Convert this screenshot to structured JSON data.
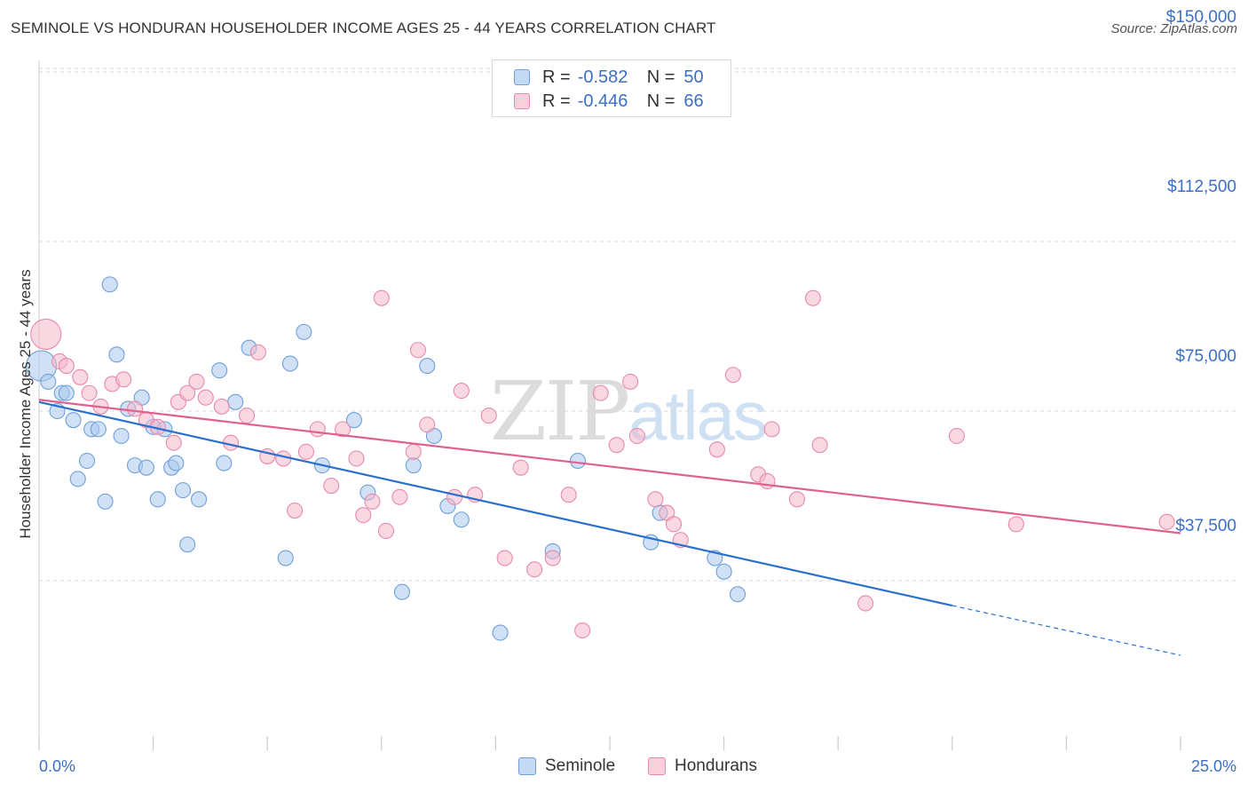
{
  "header": {
    "title": "SEMINOLE VS HONDURAN HOUSEHOLDER INCOME AGES 25 - 44 YEARS CORRELATION CHART",
    "source": "Source: ZipAtlas.com"
  },
  "watermark": {
    "zip": "ZIP",
    "atlas": "atlas"
  },
  "legend_top": {
    "rows": [
      {
        "r_label": "R =",
        "r_value": "-0.582",
        "n_label": "N =",
        "n_value": "50",
        "color": "#a9c8ef"
      },
      {
        "r_label": "R =",
        "r_value": "-0.446",
        "n_label": "N =",
        "n_value": "66",
        "color": "#f4b8cb"
      }
    ]
  },
  "legend_bottom": {
    "items": [
      {
        "label": "Seminole",
        "color": "#a9c8ef"
      },
      {
        "label": "Hondurans",
        "color": "#f4b8cb"
      }
    ]
  },
  "colors": {
    "seminole_fill": "#a9c8ef",
    "seminole_stroke": "#6f9fd8",
    "seminole_line": "#2a6fcf",
    "hondurans_fill": "#f4b8cb",
    "hondurans_stroke": "#e88aa8",
    "hondurans_line": "#e0608f",
    "tick_label": "#3b6fc7",
    "grid": "#d9d9d9"
  },
  "chart_data": {
    "type": "scatter",
    "title": "SEMINOLE VS HONDURAN HOUSEHOLDER INCOME AGES 25 - 44 YEARS CORRELATION CHART",
    "xlabel": "",
    "ylabel": "Householder Income Ages 25 - 44 years",
    "xlim": [
      0,
      25
    ],
    "ylim": [
      0,
      155000
    ],
    "x_tick_labels": [
      "0.0%",
      "25.0%"
    ],
    "y_ticks": [
      37500,
      75000,
      112500,
      150000
    ],
    "y_tick_labels": [
      "$37,500",
      "$75,000",
      "$112,500",
      "$150,000"
    ],
    "grid": "horizontal dashed",
    "legend": "top-center and bottom",
    "series": [
      {
        "name": "Seminole",
        "r": -0.582,
        "n": 50,
        "trend": {
          "x": [
            0,
            20
          ],
          "y": [
            77000,
            32000
          ],
          "dashed_extension_to_x": 25,
          "dashed_extension_y": 21000
        },
        "points": [
          {
            "x": 0.05,
            "y": 85000,
            "big": true
          },
          {
            "x": 0.2,
            "y": 81500
          },
          {
            "x": 0.4,
            "y": 75000
          },
          {
            "x": 0.5,
            "y": 79000
          },
          {
            "x": 0.6,
            "y": 79000
          },
          {
            "x": 0.75,
            "y": 73000
          },
          {
            "x": 0.85,
            "y": 60000
          },
          {
            "x": 1.05,
            "y": 64000
          },
          {
            "x": 1.15,
            "y": 71000
          },
          {
            "x": 1.3,
            "y": 71000
          },
          {
            "x": 1.45,
            "y": 55000
          },
          {
            "x": 1.55,
            "y": 103000
          },
          {
            "x": 1.7,
            "y": 87500
          },
          {
            "x": 1.8,
            "y": 69500
          },
          {
            "x": 1.95,
            "y": 75500
          },
          {
            "x": 2.1,
            "y": 63000
          },
          {
            "x": 2.25,
            "y": 78000
          },
          {
            "x": 2.35,
            "y": 62500
          },
          {
            "x": 2.5,
            "y": 71500
          },
          {
            "x": 2.6,
            "y": 55500
          },
          {
            "x": 2.75,
            "y": 71000
          },
          {
            "x": 2.9,
            "y": 62500
          },
          {
            "x": 3.0,
            "y": 63500
          },
          {
            "x": 3.15,
            "y": 57500
          },
          {
            "x": 3.25,
            "y": 45500
          },
          {
            "x": 3.5,
            "y": 55500
          },
          {
            "x": 3.95,
            "y": 84000
          },
          {
            "x": 4.05,
            "y": 63500
          },
          {
            "x": 4.3,
            "y": 77000
          },
          {
            "x": 4.6,
            "y": 89000
          },
          {
            "x": 5.4,
            "y": 42500
          },
          {
            "x": 5.5,
            "y": 85500
          },
          {
            "x": 5.8,
            "y": 92500
          },
          {
            "x": 6.2,
            "y": 63000
          },
          {
            "x": 6.9,
            "y": 73000
          },
          {
            "x": 7.2,
            "y": 57000
          },
          {
            "x": 7.95,
            "y": 35000
          },
          {
            "x": 8.2,
            "y": 63000
          },
          {
            "x": 8.5,
            "y": 85000
          },
          {
            "x": 8.65,
            "y": 69500
          },
          {
            "x": 8.95,
            "y": 54000
          },
          {
            "x": 9.25,
            "y": 51000
          },
          {
            "x": 10.1,
            "y": 26000
          },
          {
            "x": 11.25,
            "y": 44000
          },
          {
            "x": 11.8,
            "y": 64000
          },
          {
            "x": 13.4,
            "y": 46000
          },
          {
            "x": 13.6,
            "y": 52500
          },
          {
            "x": 14.8,
            "y": 42500
          },
          {
            "x": 15.0,
            "y": 39500
          },
          {
            "x": 15.3,
            "y": 34500
          }
        ]
      },
      {
        "name": "Hondurans",
        "r": -0.446,
        "n": 66,
        "trend": {
          "x": [
            0,
            25
          ],
          "y": [
            77500,
            48000
          ]
        },
        "points": [
          {
            "x": 0.15,
            "y": 92000,
            "big": true
          },
          {
            "x": 0.45,
            "y": 86000
          },
          {
            "x": 0.6,
            "y": 85000
          },
          {
            "x": 0.9,
            "y": 82500
          },
          {
            "x": 1.1,
            "y": 79000
          },
          {
            "x": 1.35,
            "y": 76000
          },
          {
            "x": 1.6,
            "y": 81000
          },
          {
            "x": 1.85,
            "y": 82000
          },
          {
            "x": 2.1,
            "y": 75500
          },
          {
            "x": 2.35,
            "y": 73000
          },
          {
            "x": 2.6,
            "y": 71500
          },
          {
            "x": 2.95,
            "y": 68000
          },
          {
            "x": 3.05,
            "y": 77000
          },
          {
            "x": 3.25,
            "y": 79000
          },
          {
            "x": 3.45,
            "y": 81500
          },
          {
            "x": 3.65,
            "y": 78000
          },
          {
            "x": 4.0,
            "y": 76000
          },
          {
            "x": 4.2,
            "y": 68000
          },
          {
            "x": 4.55,
            "y": 74000
          },
          {
            "x": 4.8,
            "y": 88000
          },
          {
            "x": 5.0,
            "y": 65000
          },
          {
            "x": 5.35,
            "y": 64500
          },
          {
            "x": 5.6,
            "y": 53000
          },
          {
            "x": 5.85,
            "y": 66000
          },
          {
            "x": 6.1,
            "y": 71000
          },
          {
            "x": 6.4,
            "y": 58500
          },
          {
            "x": 6.65,
            "y": 71000
          },
          {
            "x": 6.95,
            "y": 64500
          },
          {
            "x": 7.1,
            "y": 52000
          },
          {
            "x": 7.3,
            "y": 55000
          },
          {
            "x": 7.5,
            "y": 100000
          },
          {
            "x": 7.6,
            "y": 48500
          },
          {
            "x": 7.9,
            "y": 56000
          },
          {
            "x": 8.2,
            "y": 66000
          },
          {
            "x": 8.3,
            "y": 88500
          },
          {
            "x": 8.5,
            "y": 72000
          },
          {
            "x": 9.1,
            "y": 56000
          },
          {
            "x": 9.25,
            "y": 79500
          },
          {
            "x": 9.55,
            "y": 56500
          },
          {
            "x": 9.85,
            "y": 74000
          },
          {
            "x": 10.2,
            "y": 42500
          },
          {
            "x": 10.55,
            "y": 62500
          },
          {
            "x": 10.85,
            "y": 40000
          },
          {
            "x": 11.25,
            "y": 42500
          },
          {
            "x": 11.6,
            "y": 56500
          },
          {
            "x": 11.9,
            "y": 26500
          },
          {
            "x": 12.3,
            "y": 79000
          },
          {
            "x": 12.65,
            "y": 67500
          },
          {
            "x": 12.95,
            "y": 81500
          },
          {
            "x": 13.1,
            "y": 69500
          },
          {
            "x": 13.5,
            "y": 55500
          },
          {
            "x": 13.75,
            "y": 52500
          },
          {
            "x": 13.9,
            "y": 50000
          },
          {
            "x": 14.05,
            "y": 46500
          },
          {
            "x": 14.85,
            "y": 66500
          },
          {
            "x": 15.2,
            "y": 83000
          },
          {
            "x": 15.75,
            "y": 61000
          },
          {
            "x": 15.95,
            "y": 59500
          },
          {
            "x": 16.05,
            "y": 71000
          },
          {
            "x": 16.6,
            "y": 55500
          },
          {
            "x": 16.95,
            "y": 100000
          },
          {
            "x": 17.1,
            "y": 67500
          },
          {
            "x": 18.1,
            "y": 32500
          },
          {
            "x": 20.1,
            "y": 69500
          },
          {
            "x": 21.4,
            "y": 50000
          },
          {
            "x": 24.7,
            "y": 50500
          }
        ]
      }
    ]
  }
}
